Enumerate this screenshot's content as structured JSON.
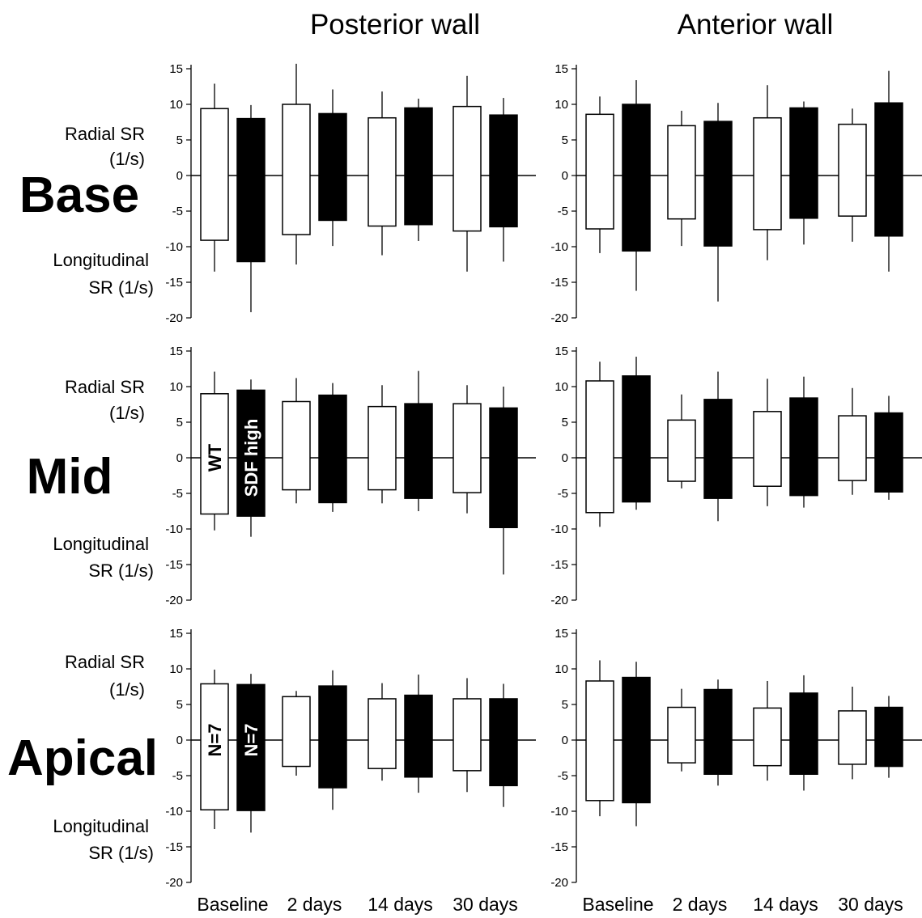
{
  "column_titles": [
    "Posterior wall",
    "Anterior wall"
  ],
  "row_labels": [
    "Base",
    "Mid",
    "Apical"
  ],
  "y_label_top": [
    "Radial SR",
    "(1/s)"
  ],
  "y_label_bottom": [
    "Longitudinal",
    "SR (1/s)"
  ],
  "colors": {
    "WT": "#ffffff",
    "SDF high": "#000000",
    "outline": "#000000"
  },
  "chart_data": [
    {
      "type": "bar",
      "title": "",
      "categories": [
        "Baseline",
        "2 days",
        "14 days",
        "30 days"
      ],
      "ylim": [
        -20,
        15
      ],
      "yticks": [
        15,
        10,
        5,
        0,
        -5,
        -10,
        -15,
        -20
      ],
      "series": [
        {
          "values_radial": [
            9.4,
            10.0,
            8.1,
            9.7
          ],
          "err_radial": [
            3.5,
            5.7,
            3.7,
            4.3
          ],
          "values_longitudinal": [
            -9.1,
            -8.3,
            -7.1,
            -7.8
          ],
          "err_longitudinal": [
            4.4,
            4.2,
            4.1,
            5.7
          ]
        },
        {
          "values_radial": [
            8.0,
            8.7,
            9.5,
            8.5
          ],
          "err_radial": [
            1.9,
            3.4,
            1.3,
            2.4
          ],
          "values_longitudinal": [
            -12.1,
            -6.3,
            -6.9,
            -7.2
          ],
          "err_longitudinal": [
            7.1,
            3.6,
            2.3,
            4.9
          ]
        }
      ]
    },
    {
      "type": "bar",
      "title": "",
      "categories": [
        "Baseline",
        "2 days",
        "14 days",
        "30 days"
      ],
      "ylim": [
        -20,
        15
      ],
      "yticks": [
        15,
        10,
        5,
        0,
        -5,
        -10,
        -15,
        -20
      ],
      "series": [
        {
          "values_radial": [
            8.6,
            7.0,
            8.1,
            7.2
          ],
          "err_radial": [
            2.5,
            2.1,
            4.6,
            2.2
          ],
          "values_longitudinal": [
            -7.5,
            -6.1,
            -7.6,
            -5.7
          ],
          "err_longitudinal": [
            3.4,
            3.8,
            4.3,
            3.6
          ]
        },
        {
          "values_radial": [
            10.0,
            7.6,
            9.5,
            10.2
          ],
          "err_radial": [
            3.4,
            2.6,
            0.9,
            4.5
          ],
          "values_longitudinal": [
            -10.6,
            -9.9,
            -6.0,
            -8.5
          ],
          "err_longitudinal": [
            5.6,
            7.8,
            3.7,
            5.0
          ]
        }
      ]
    },
    {
      "type": "bar",
      "title": "",
      "categories": [
        "Baseline",
        "2 days",
        "14 days",
        "30 days"
      ],
      "ylim": [
        -20,
        15
      ],
      "yticks": [
        15,
        10,
        5,
        0,
        -5,
        -10,
        -15,
        -20
      ],
      "series": [
        {
          "name": "WT",
          "values_radial": [
            9.0,
            7.9,
            7.2,
            7.6
          ],
          "err_radial": [
            3.1,
            3.3,
            3.0,
            2.6
          ],
          "values_longitudinal": [
            -7.9,
            -4.5,
            -4.5,
            -4.9
          ],
          "err_longitudinal": [
            2.3,
            1.9,
            1.9,
            2.9
          ]
        },
        {
          "name": "SDF high",
          "values_radial": [
            9.5,
            8.8,
            7.6,
            7.0
          ],
          "err_radial": [
            1.5,
            1.7,
            4.6,
            3.0
          ],
          "values_longitudinal": [
            -8.2,
            -6.3,
            -5.7,
            -9.8
          ],
          "err_longitudinal": [
            2.9,
            1.3,
            1.8,
            6.6
          ]
        }
      ]
    },
    {
      "type": "bar",
      "title": "",
      "categories": [
        "Baseline",
        "2 days",
        "14 days",
        "30 days"
      ],
      "ylim": [
        -20,
        15
      ],
      "yticks": [
        15,
        10,
        5,
        0,
        -5,
        -10,
        -15,
        -20
      ],
      "series": [
        {
          "values_radial": [
            10.8,
            5.3,
            6.5,
            5.9
          ],
          "err_radial": [
            2.7,
            3.6,
            4.6,
            3.9
          ],
          "values_longitudinal": [
            -7.7,
            -3.3,
            -4.0,
            -3.2
          ],
          "err_longitudinal": [
            2.0,
            1.0,
            2.8,
            2.0
          ]
        },
        {
          "values_radial": [
            11.5,
            8.2,
            8.4,
            6.3
          ],
          "err_radial": [
            2.7,
            3.9,
            3.0,
            2.4
          ],
          "values_longitudinal": [
            -6.2,
            -5.7,
            -5.3,
            -4.8
          ],
          "err_longitudinal": [
            1.1,
            3.2,
            1.7,
            1.1
          ]
        }
      ]
    },
    {
      "type": "bar",
      "title": "",
      "categories": [
        "Baseline",
        "2 days",
        "14 days",
        "30 days"
      ],
      "ylim": [
        -20,
        15
      ],
      "yticks": [
        15,
        10,
        5,
        0,
        -5,
        -10,
        -15,
        -20
      ],
      "series": [
        {
          "name": "N=7",
          "values_radial": [
            7.9,
            6.1,
            5.8,
            5.8
          ],
          "err_radial": [
            2.0,
            0.8,
            2.2,
            2.9
          ],
          "values_longitudinal": [
            -9.8,
            -3.7,
            -4.0,
            -4.3
          ],
          "err_longitudinal": [
            2.7,
            1.3,
            1.7,
            3.0
          ]
        },
        {
          "name": "N=7",
          "values_radial": [
            7.8,
            7.6,
            6.3,
            5.8
          ],
          "err_radial": [
            1.5,
            2.2,
            2.9,
            2.1
          ],
          "values_longitudinal": [
            -9.9,
            -6.7,
            -5.2,
            -6.4
          ],
          "err_longitudinal": [
            3.1,
            3.1,
            2.2,
            3.0
          ]
        }
      ]
    },
    {
      "type": "bar",
      "title": "",
      "categories": [
        "Baseline",
        "2 days",
        "14 days",
        "30 days"
      ],
      "ylim": [
        -20,
        15
      ],
      "yticks": [
        15,
        10,
        5,
        0,
        -5,
        -10,
        -15,
        -20
      ],
      "series": [
        {
          "values_radial": [
            8.3,
            4.6,
            4.5,
            4.1
          ],
          "err_radial": [
            2.9,
            2.6,
            3.8,
            3.4
          ],
          "values_longitudinal": [
            -8.5,
            -3.2,
            -3.6,
            -3.4
          ],
          "err_longitudinal": [
            2.2,
            1.2,
            2.1,
            2.1
          ]
        },
        {
          "values_radial": [
            8.8,
            7.1,
            6.6,
            4.6
          ],
          "err_radial": [
            2.2,
            1.4,
            2.5,
            1.6
          ],
          "values_longitudinal": [
            -8.8,
            -4.8,
            -4.8,
            -3.7
          ],
          "err_longitudinal": [
            3.3,
            1.6,
            2.3,
            1.6
          ]
        }
      ]
    }
  ]
}
